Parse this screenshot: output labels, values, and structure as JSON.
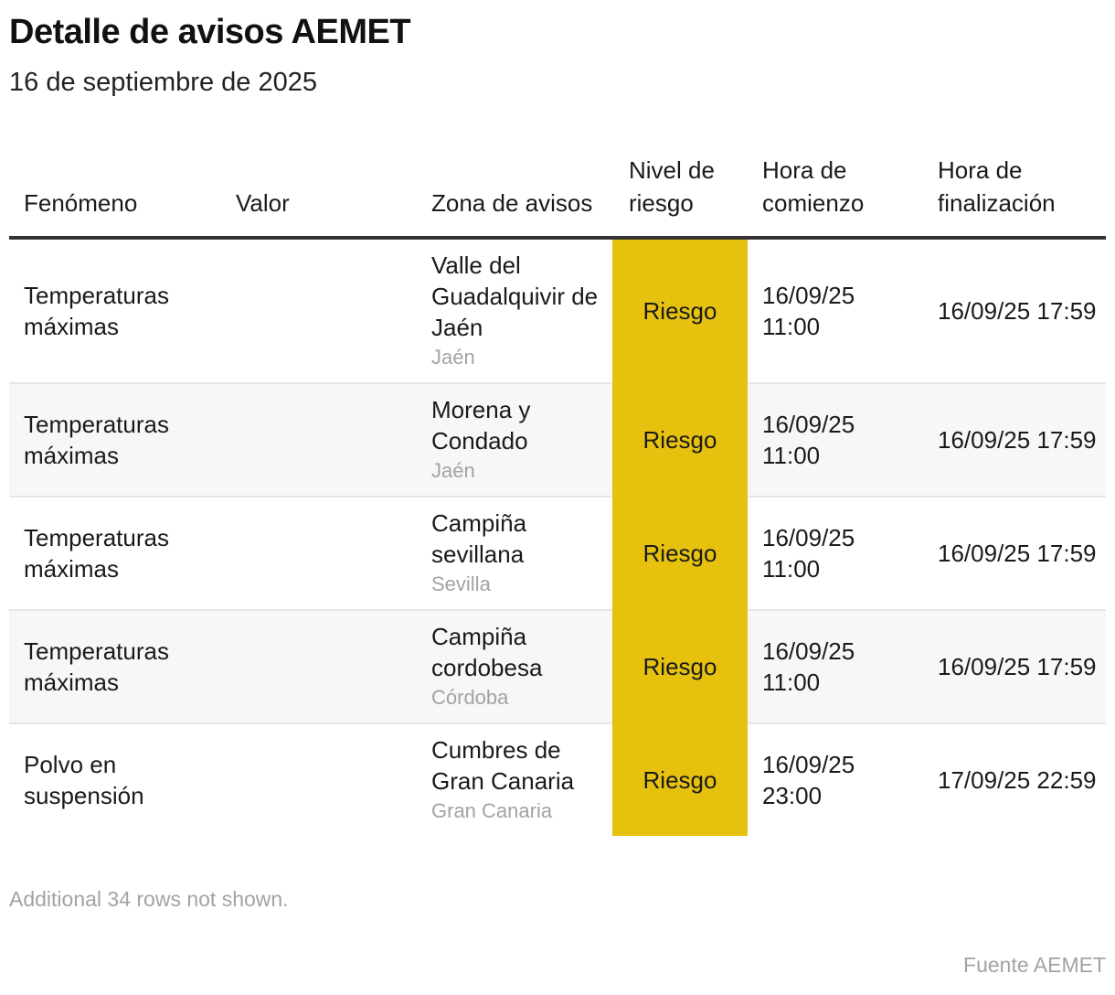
{
  "title": "Detalle de avisos AEMET",
  "subtitle": "16 de septiembre de 2025",
  "table": {
    "headers": {
      "fenomeno": "Fenómeno",
      "valor": "Valor",
      "zona": "Zona de avisos",
      "nivel": "Nivel de riesgo",
      "comienzo": "Hora de comienzo",
      "finalizacion": "Hora de finalización"
    },
    "rows": [
      {
        "fenomeno": "Temperaturas máximas",
        "valor": "",
        "zona": "Valle del Guadalquivir de Jaén",
        "provincia": "Jaén",
        "nivel": "Riesgo",
        "comienzo": "16/09/25 11:00",
        "fin": "16/09/25 17:59"
      },
      {
        "fenomeno": "Temperaturas máximas",
        "valor": "",
        "zona": "Morena y Condado",
        "provincia": "Jaén",
        "nivel": "Riesgo",
        "comienzo": "16/09/25 11:00",
        "fin": "16/09/25 17:59"
      },
      {
        "fenomeno": "Temperaturas máximas",
        "valor": "",
        "zona": "Campiña sevillana",
        "provincia": "Sevilla",
        "nivel": "Riesgo",
        "comienzo": "16/09/25 11:00",
        "fin": "16/09/25 17:59"
      },
      {
        "fenomeno": "Temperaturas máximas",
        "valor": "",
        "zona": "Campiña cordobesa",
        "provincia": "Córdoba",
        "nivel": "Riesgo",
        "comienzo": "16/09/25 11:00",
        "fin": "16/09/25 17:59"
      },
      {
        "fenomeno": "Polvo en suspensión",
        "valor": "",
        "zona": "Cumbres de Gran Canaria",
        "provincia": "Gran Canaria",
        "nivel": "Riesgo",
        "comienzo": "16/09/25 23:00",
        "fin": "17/09/25 22:59"
      }
    ]
  },
  "colors": {
    "riesgo": "#e6c20e"
  },
  "note": "Additional 34 rows not shown.",
  "source": "Fuente AEMET"
}
